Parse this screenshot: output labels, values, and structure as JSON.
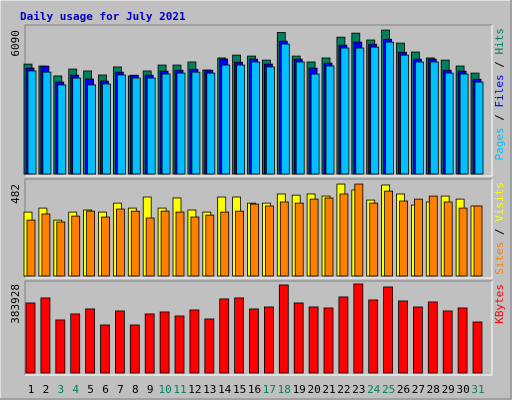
{
  "chart_data": [
    {
      "type": "bar",
      "title": "Daily usage for July 2021",
      "legend_separator": " / ",
      "ylim": [
        0,
        6220
      ],
      "yticks": [
        6090
      ],
      "series": [
        {
          "name": "Hits",
          "color": "#00805c",
          "values": [
            4650,
            4570,
            4150,
            4440,
            4360,
            4190,
            4530,
            4150,
            4360,
            4610,
            4610,
            4740,
            4400,
            4910,
            5030,
            4990,
            4820,
            5990,
            4990,
            4740,
            4910,
            5790,
            5960,
            5670,
            6090,
            5540,
            5160,
            4910,
            4820,
            4570,
            4270
          ]
        },
        {
          "name": "Files",
          "color": "#0000ff",
          "values": [
            4480,
            4560,
            3890,
            4180,
            4020,
            3930,
            4310,
            4180,
            4180,
            4350,
            4390,
            4430,
            4390,
            4860,
            4730,
            4860,
            4650,
            5620,
            4860,
            4480,
            4690,
            5450,
            5580,
            5490,
            5700,
            5150,
            4860,
            4860,
            4390,
            4350,
            4010
          ]
        },
        {
          "name": "Pages",
          "color": "#00c0ff",
          "values": [
            4360,
            4310,
            3770,
            4060,
            3770,
            3810,
            4190,
            4060,
            4060,
            4230,
            4270,
            4310,
            4270,
            4610,
            4610,
            4740,
            4530,
            5500,
            4740,
            4230,
            4570,
            5330,
            5330,
            5370,
            5580,
            5030,
            4740,
            4740,
            4270,
            4230,
            3890
          ]
        }
      ]
    },
    {
      "type": "bar",
      "legend_separator": " / ",
      "ylim": [
        0,
        498
      ],
      "yticks": [
        482
      ],
      "series": [
        {
          "name": "Visits",
          "color": "#ffff00",
          "values": [
            335,
            356,
            293,
            335,
            346,
            335,
            382,
            356,
            414,
            356,
            409,
            346,
            335,
            414,
            414,
            382,
            382,
            430,
            424,
            430,
            419,
            482,
            451,
            398,
            477,
            430,
            372,
            388,
            419,
            403,
            367
          ]
        },
        {
          "name": "Sites",
          "color": "#ff8000",
          "values": [
            293,
            325,
            283,
            314,
            340,
            309,
            351,
            340,
            304,
            340,
            335,
            309,
            319,
            335,
            340,
            377,
            367,
            388,
            382,
            403,
            409,
            430,
            482,
            382,
            445,
            393,
            403,
            419,
            388,
            356,
            367
          ]
        }
      ]
    },
    {
      "type": "bar",
      "ylim": [
        0,
        388000
      ],
      "yticks": [
        383928
      ],
      "series": [
        {
          "name": "KBytes",
          "color": "#ff0000",
          "values": [
            302000,
            323600,
            228700,
            254600,
            276200,
            207100,
            267500,
            207100,
            254600,
            263200,
            245900,
            271800,
            233000,
            319300,
            323600,
            276200,
            284700,
            379600,
            302000,
            284700,
            280400,
            327900,
            383928,
            314900,
            371000,
            310600,
            284700,
            306300,
            267500,
            280400,
            220000
          ]
        }
      ],
      "categories": [
        "1",
        "2",
        "3",
        "4",
        "5",
        "6",
        "7",
        "8",
        "9",
        "10",
        "11",
        "12",
        "13",
        "14",
        "15",
        "16",
        "17",
        "18",
        "19",
        "20",
        "21",
        "22",
        "23",
        "24",
        "25",
        "26",
        "27",
        "28",
        "29",
        "30",
        "31"
      ],
      "category_colors": [
        "#000000",
        "#000000",
        "#00805c",
        "#00805c",
        "#000000",
        "#000000",
        "#000000",
        "#000000",
        "#000000",
        "#00805c",
        "#00805c",
        "#000000",
        "#000000",
        "#000000",
        "#000000",
        "#000000",
        "#00805c",
        "#00805c",
        "#000000",
        "#000000",
        "#000000",
        "#000000",
        "#000000",
        "#00805c",
        "#00805c",
        "#000000",
        "#000000",
        "#000000",
        "#000000",
        "#000000",
        "#00805c"
      ]
    }
  ]
}
